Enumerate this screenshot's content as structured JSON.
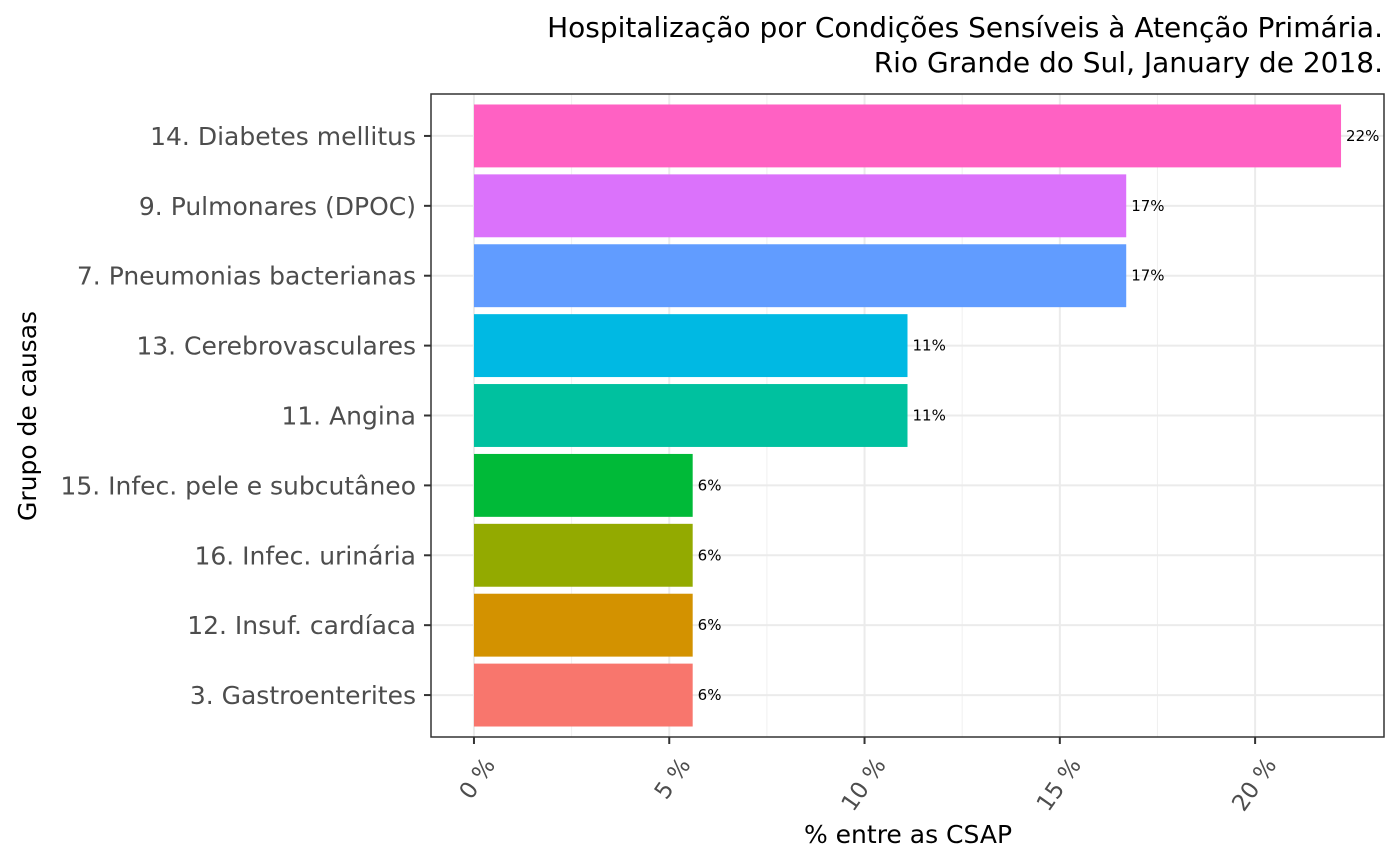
{
  "chart_data": {
    "type": "bar",
    "orientation": "horizontal",
    "title_lines": [
      "Hospitalização por Condições Sensíveis à Atenção Primária.",
      "Rio Grande do Sul, January de 2018."
    ],
    "xlabel": "% entre as CSAP",
    "ylabel": "Grupo de causas",
    "xlim": [
      -1.1,
      23.3
    ],
    "x_ticks": [
      0,
      5,
      10,
      15,
      20
    ],
    "x_tick_labels": [
      "0 %",
      "5 %",
      "10 %",
      "15 %",
      "20 %"
    ],
    "grid": true,
    "legend": "none",
    "bars": [
      {
        "category": "14. Diabetes mellitus",
        "value": 22.2,
        "label": "22%",
        "color": "#FF61C3"
      },
      {
        "category": "9. Pulmonares (DPOC)",
        "value": 16.7,
        "label": "17%",
        "color": "#DB72FB"
      },
      {
        "category": "7. Pneumonias bacterianas",
        "value": 16.7,
        "label": "17%",
        "color": "#619CFF"
      },
      {
        "category": "13. Cerebrovasculares",
        "value": 11.1,
        "label": "11%",
        "color": "#00B9E3"
      },
      {
        "category": "11. Angina",
        "value": 11.1,
        "label": "11%",
        "color": "#00C19F"
      },
      {
        "category": "15. Infec. pele e subcutâneo",
        "value": 5.6,
        "label": "6%",
        "color": "#00BA38"
      },
      {
        "category": "16. Infec. urinária",
        "value": 5.6,
        "label": "6%",
        "color": "#93AA00"
      },
      {
        "category": "12. Insuf. cardíaca",
        "value": 5.6,
        "label": "6%",
        "color": "#D39200"
      },
      {
        "category": "3. Gastroenterites",
        "value": 5.6,
        "label": "6%",
        "color": "#F8766D"
      }
    ]
  }
}
